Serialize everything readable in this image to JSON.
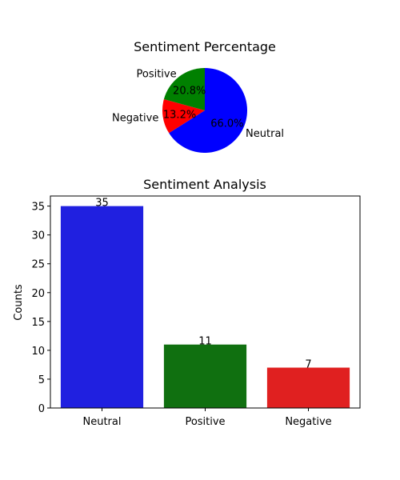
{
  "chart_data": [
    {
      "type": "pie",
      "title": "Sentiment Percentage",
      "labels": [
        "Neutral",
        "Negative",
        "Positive"
      ],
      "values": [
        35,
        7,
        11
      ],
      "percent_labels": [
        "66.0%",
        "13.2%",
        "20.8%"
      ],
      "colors": [
        "#0000ff",
        "#ff0000",
        "#008000"
      ],
      "start_angle_deg": 90,
      "direction": "clockwise"
    },
    {
      "type": "bar",
      "title": "Sentiment Analysis",
      "categories": [
        "Neutral",
        "Positive",
        "Negative"
      ],
      "values": [
        35,
        11,
        7
      ],
      "value_labels": [
        "35",
        "11",
        "7"
      ],
      "colors": [
        "#2020e0",
        "#107010",
        "#e02020"
      ],
      "xlabel": "",
      "ylabel": "Counts",
      "ylim": [
        0,
        36.75
      ],
      "yticks": [
        0,
        5,
        10,
        15,
        20,
        25,
        30,
        35
      ],
      "ytick_labels": [
        "0",
        "5",
        "10",
        "15",
        "20",
        "25",
        "30",
        "35"
      ],
      "grid": false
    }
  ]
}
